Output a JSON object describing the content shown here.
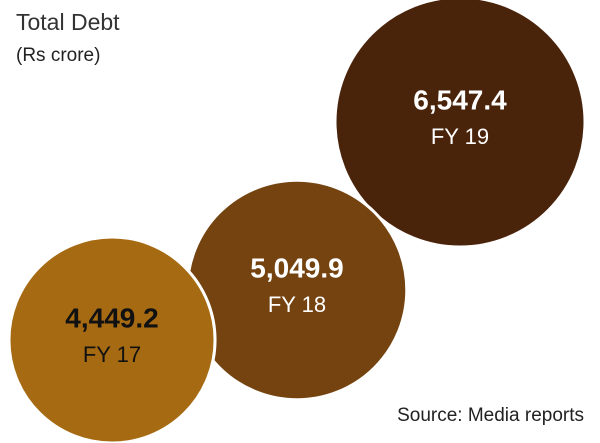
{
  "chart_data": {
    "type": "bubble",
    "title": "Total Debt",
    "subtitle": "(Rs crore)",
    "categories": [
      "FY 17",
      "FY 18",
      "FY 19"
    ],
    "values": [
      4449.2,
      5049.9,
      6547.4
    ],
    "value_labels": [
      "4,449.2",
      "5,049.9",
      "6,547.4"
    ],
    "colors": [
      "#a66a12",
      "#744310",
      "#4a230b"
    ],
    "source": "Source: Media reports"
  }
}
